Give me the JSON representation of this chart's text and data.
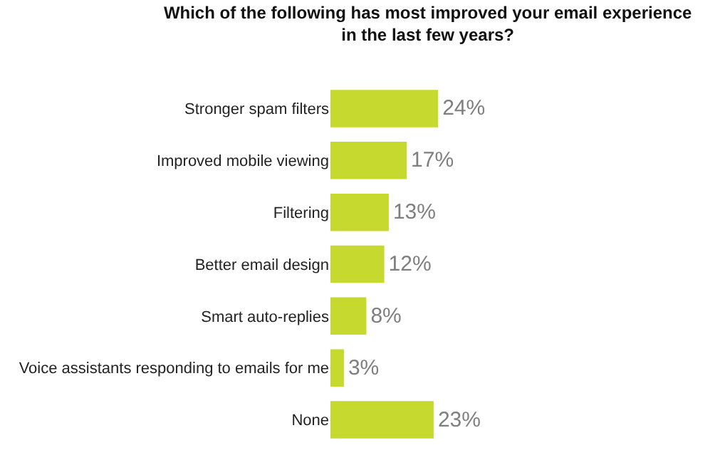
{
  "chart_data": {
    "type": "bar",
    "orientation": "horizontal",
    "title": "Which of the following has most improved your email experience in the last few years?",
    "categories": [
      "Stronger spam filters",
      "Improved mobile viewing",
      "Filtering",
      "Better email design",
      "Smart auto-replies",
      "Voice assistants responding to emails for me",
      "None"
    ],
    "values": [
      24,
      17,
      13,
      12,
      8,
      3,
      23
    ],
    "value_labels": [
      "24%",
      "17%",
      "13%",
      "12%",
      "8%",
      "3%",
      "23%"
    ],
    "color": "#c5d92e",
    "tick_labels": "y"
  }
}
